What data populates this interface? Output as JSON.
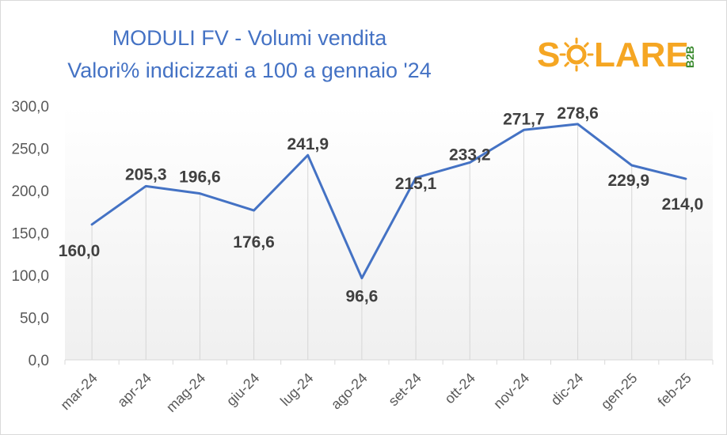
{
  "chart_data": {
    "type": "line",
    "title_line1": "MODULI FV - Volumi vendita",
    "title_line2": "Valori% indicizzati a 100 a gennaio '24",
    "categories": [
      "mar-24",
      "apr-24",
      "mag-24",
      "giu-24",
      "lug-24",
      "ago-24",
      "set-24",
      "ott-24",
      "nov-24",
      "dic-24",
      "gen-25",
      "feb-25"
    ],
    "values": [
      160.0,
      205.3,
      196.6,
      176.6,
      241.9,
      96.6,
      215.1,
      233.2,
      271.7,
      278.6,
      229.9,
      214.0
    ],
    "data_labels": [
      "160,0",
      "205,3",
      "196,6",
      "176,6",
      "241,9",
      "96,6",
      "215,1",
      "233,2",
      "271,7",
      "278,6",
      "229,9",
      "214,0"
    ],
    "y_ticks": [
      "0,0",
      "50,0",
      "100,0",
      "150,0",
      "200,0",
      "250,0",
      "300,0"
    ],
    "ylim": [
      0,
      300
    ],
    "line_color": "#4472c4",
    "grid": false
  },
  "logo": {
    "text_part1": "S",
    "text_part2": "LARE",
    "badge": "B2B",
    "color_text": "#f5a623",
    "color_sun": "#f5a623",
    "color_badge": "#3a8a2e"
  }
}
